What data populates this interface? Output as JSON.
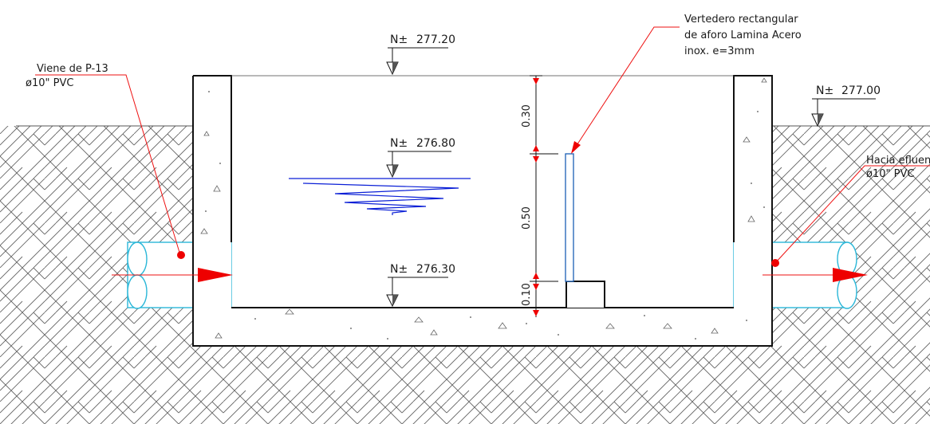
{
  "levels": {
    "top": {
      "prefix": "N±",
      "value": "277.20"
    },
    "water": {
      "prefix": "N±",
      "value": "276.80"
    },
    "floor": {
      "prefix": "N±",
      "value": "276.30"
    },
    "ground": {
      "prefix": "N±",
      "value": "277.00"
    }
  },
  "labels": {
    "inlet": {
      "line1": "Viene de P-13",
      "line2": "ø10\" PVC"
    },
    "outlet": {
      "line1": "Hacia efluente",
      "line2": "ø10\" PVC"
    },
    "weir": {
      "line1": "Vertedero rectangular",
      "line2": "de aforo Lamina Acero",
      "line3": "inox. e=3mm"
    }
  },
  "dimensions": {
    "upper": "0.30",
    "middle": "0.50",
    "lower": "0.10"
  },
  "colors": {
    "line": "#111111",
    "water": "#0a1fd6",
    "pipe": "#2ab7d8",
    "leader": "#ee1111",
    "arrow": "#ee0000",
    "hatch": "#555555",
    "weir_plate": "#1b5fb5"
  }
}
